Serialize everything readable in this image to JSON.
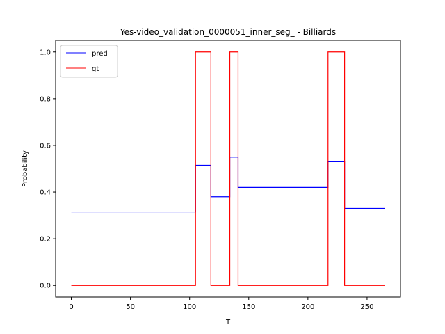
{
  "chart_data": {
    "type": "line",
    "title": "Yes-video_validation_0000051_inner_seg_ - Billiards",
    "xlabel": "T",
    "ylabel": "Probability",
    "xlim": [
      -13.25,
      278.25
    ],
    "ylim": [
      -0.05,
      1.05
    ],
    "xticks": [
      0,
      50,
      100,
      150,
      200,
      250
    ],
    "yticks": [
      0.0,
      0.2,
      0.4,
      0.6,
      0.8,
      1.0
    ],
    "ytick_labels": [
      "0.0",
      "0.2",
      "0.4",
      "0.6",
      "0.8",
      "1.0"
    ],
    "grid": false,
    "legend_position": "top-left",
    "series": [
      {
        "name": "pred",
        "color": "#0000ff",
        "x": [
          0,
          105,
          105,
          118,
          118,
          134,
          134,
          141,
          141,
          217,
          217,
          231,
          231,
          265
        ],
        "y": [
          0.315,
          0.315,
          0.515,
          0.515,
          0.38,
          0.38,
          0.55,
          0.55,
          0.42,
          0.42,
          0.53,
          0.53,
          0.33,
          0.33
        ]
      },
      {
        "name": "gt",
        "color": "#ff0000",
        "x": [
          0,
          105,
          105,
          118,
          118,
          134,
          134,
          141,
          141,
          217,
          217,
          231,
          231,
          265
        ],
        "y": [
          0,
          0,
          1,
          1,
          0,
          0,
          1,
          1,
          0,
          0,
          1,
          1,
          0,
          0
        ]
      }
    ]
  }
}
